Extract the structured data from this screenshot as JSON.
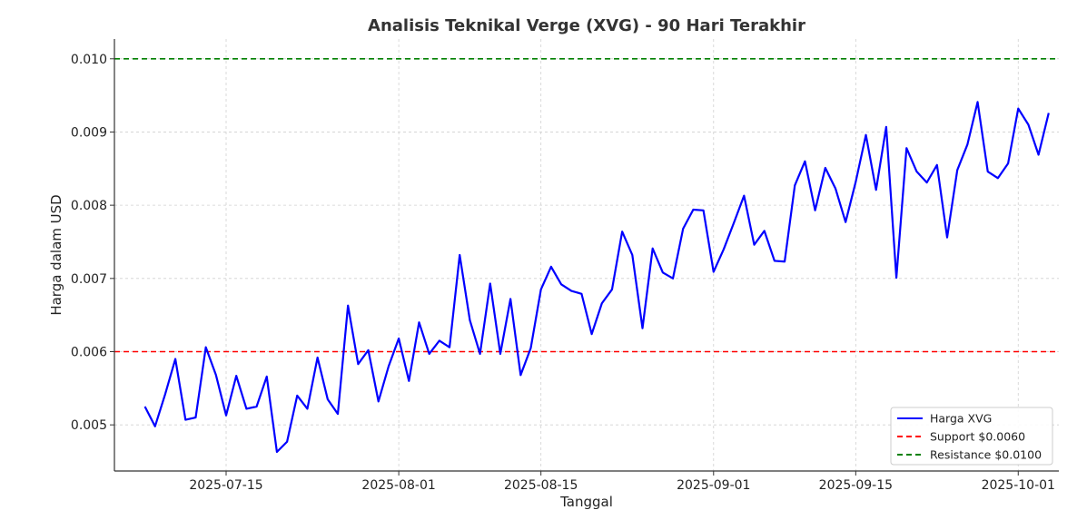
{
  "chart_data": {
    "type": "line",
    "title": "Analisis Teknikal Verge (XVG) - 90 Hari Terakhir",
    "xlabel": "Tanggal",
    "ylabel": "Harga dalam USD",
    "xlim": [
      "2025-07-04",
      "2025-10-05"
    ],
    "ylim": [
      0.00437,
      0.01027
    ],
    "x_ticks": [
      "2025-07-15",
      "2025-08-01",
      "2025-08-15",
      "2025-09-01",
      "2025-09-15",
      "2025-10-01"
    ],
    "y_ticks": [
      "0.005",
      "0.006",
      "0.007",
      "0.008",
      "0.009",
      "0.010"
    ],
    "grid": true,
    "legend_position": "lower-right",
    "series": [
      {
        "name": "Harga XVG",
        "color": "#0000ff",
        "style": "solid",
        "x_start": "2025-07-07",
        "values": [
          0.00525,
          0.00498,
          0.00542,
          0.0059,
          0.00507,
          0.0051,
          0.00606,
          0.00568,
          0.00513,
          0.00567,
          0.00522,
          0.00525,
          0.00566,
          0.00463,
          0.00477,
          0.0054,
          0.00522,
          0.00592,
          0.00535,
          0.00515,
          0.00663,
          0.00583,
          0.00602,
          0.00532,
          0.0058,
          0.00618,
          0.0056,
          0.0064,
          0.00597,
          0.00615,
          0.00606,
          0.00732,
          0.00643,
          0.00597,
          0.00693,
          0.00597,
          0.00672,
          0.00568,
          0.00605,
          0.00685,
          0.00716,
          0.00692,
          0.00683,
          0.00679,
          0.00624,
          0.00666,
          0.00685,
          0.00764,
          0.00732,
          0.00632,
          0.00741,
          0.00708,
          0.007,
          0.00768,
          0.00794,
          0.00793,
          0.00709,
          0.0074,
          0.00776,
          0.00813,
          0.00746,
          0.00765,
          0.00724,
          0.00723,
          0.00827,
          0.0086,
          0.00793,
          0.00851,
          0.00823,
          0.00777,
          0.00832,
          0.00896,
          0.00821,
          0.00907,
          0.00701,
          0.00878,
          0.00846,
          0.00831,
          0.00855,
          0.00756,
          0.00848,
          0.00883,
          0.00941,
          0.00846,
          0.00837,
          0.00857,
          0.00932,
          0.0091,
          0.00869,
          0.00926
        ]
      },
      {
        "name": "Support $0.0060",
        "color": "#ff0000",
        "style": "dashed",
        "hline": 0.006
      },
      {
        "name": "Resistance $0.0100",
        "color": "#008000",
        "style": "dashed",
        "hline": 0.01
      }
    ]
  }
}
